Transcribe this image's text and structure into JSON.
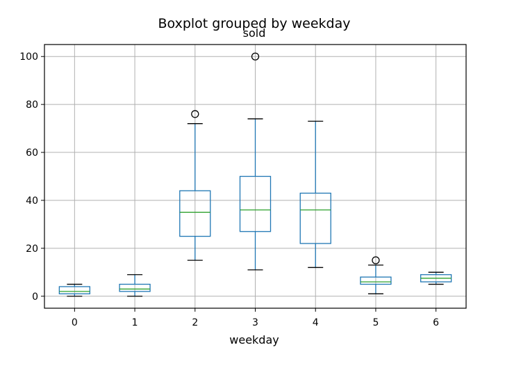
{
  "chart_data": {
    "type": "boxplot",
    "suptitle": "Boxplot grouped by weekday",
    "title": "sold",
    "xlabel": "weekday",
    "ylabel": "",
    "ylim": [
      -5,
      105
    ],
    "yticks": [
      0,
      20,
      40,
      60,
      80,
      100
    ],
    "grid": true,
    "categories": [
      "0",
      "1",
      "2",
      "3",
      "4",
      "5",
      "6"
    ],
    "boxes": [
      {
        "category": "0",
        "whisker_low": 0,
        "q1": 1,
        "median": 2,
        "q3": 4,
        "whisker_high": 5,
        "outliers": []
      },
      {
        "category": "1",
        "whisker_low": 0,
        "q1": 2,
        "median": 3,
        "q3": 5,
        "whisker_high": 9,
        "outliers": []
      },
      {
        "category": "2",
        "whisker_low": 15,
        "q1": 25,
        "median": 35,
        "q3": 44,
        "whisker_high": 72,
        "outliers": [
          76
        ]
      },
      {
        "category": "3",
        "whisker_low": 11,
        "q1": 27,
        "median": 36,
        "q3": 50,
        "whisker_high": 74,
        "outliers": [
          100
        ]
      },
      {
        "category": "4",
        "whisker_low": 12,
        "q1": 22,
        "median": 36,
        "q3": 43,
        "whisker_high": 73,
        "outliers": []
      },
      {
        "category": "5",
        "whisker_low": 1,
        "q1": 5,
        "median": 6,
        "q3": 8,
        "whisker_high": 13,
        "outliers": [
          15
        ]
      },
      {
        "category": "6",
        "whisker_low": 5,
        "q1": 6,
        "median": 7.5,
        "q3": 9,
        "whisker_high": 10,
        "outliers": []
      }
    ],
    "colors": {
      "box": "#1f77b4",
      "median": "#2ca02c",
      "whisker_cap": "#000000",
      "grid": "#b0b0b0"
    }
  }
}
